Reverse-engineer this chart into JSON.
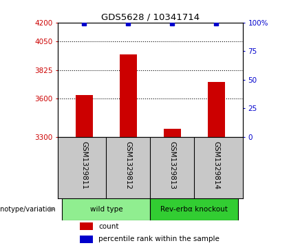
{
  "title": "GDS5628 / 10341714",
  "samples": [
    "GSM1329811",
    "GSM1329812",
    "GSM1329813",
    "GSM1329814"
  ],
  "counts": [
    3630,
    3950,
    3365,
    3730
  ],
  "percentile_ranks": [
    99,
    99,
    99,
    99
  ],
  "ylim_left": [
    3300,
    4200
  ],
  "yticks_left": [
    3300,
    3600,
    3825,
    4050,
    4200
  ],
  "yticks_right": [
    0,
    25,
    50,
    75,
    100
  ],
  "ylim_right": [
    0,
    100
  ],
  "bar_color": "#cc0000",
  "dot_color": "#0000cc",
  "groups": [
    {
      "label": "wild type",
      "samples": [
        0,
        1
      ],
      "color": "#90ee90"
    },
    {
      "label": "Rev-erbα knockout",
      "samples": [
        2,
        3
      ],
      "color": "#32cd32"
    }
  ],
  "group_label": "genotype/variation",
  "legend_count_label": "count",
  "legend_pct_label": "percentile rank within the sample",
  "bg_color": "#ffffff",
  "plot_bg_color": "#ffffff",
  "left_tick_color": "#cc0000",
  "right_tick_color": "#0000cc",
  "xlabel_box_color": "#c8c8c8",
  "grid_dotted_at": [
    4050,
    3825,
    3600
  ],
  "bar_width": 0.4
}
